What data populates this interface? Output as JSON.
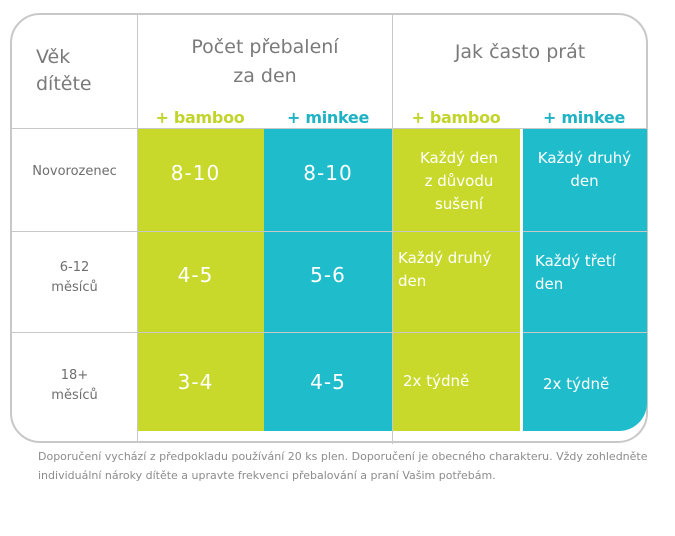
{
  "header": {
    "age_label": "Věk\ndítěte",
    "changes_label": "Počet přebalení\nza den",
    "wash_label": "Jak často prát",
    "brand_bamboo": "+ bamboo",
    "brand_minkee": "+ minkee"
  },
  "rows": [
    {
      "label": "Novorozenec",
      "bamboo_changes": "8-10",
      "minkee_changes": "8-10",
      "bamboo_wash": "Každý den\nz důvodu\nsušení",
      "minkee_wash": "Každý druhý\nden"
    },
    {
      "label": "6-12\nměsíců",
      "bamboo_changes": "4-5",
      "minkee_changes": "5-6",
      "bamboo_wash": "Každý druhý\nden",
      "minkee_wash": "Každý třetí\nden"
    },
    {
      "label": "18+\nměsíců",
      "bamboo_changes": "3-4",
      "minkee_changes": "4-5",
      "bamboo_wash": "2x týdně",
      "minkee_wash": "2x týdně"
    }
  ],
  "footnote": "Doporučení vychází z předpokladu používání 20 ks plen. Doporučení je obecného charakteru. Vždy zohledněte individuální nároky dítěte a upravte frekvenci přebalování a praní Vašim potřebám.",
  "colors": {
    "lime": "#c8d92b",
    "teal": "#1fbccb",
    "border": "#c8c8c8"
  }
}
